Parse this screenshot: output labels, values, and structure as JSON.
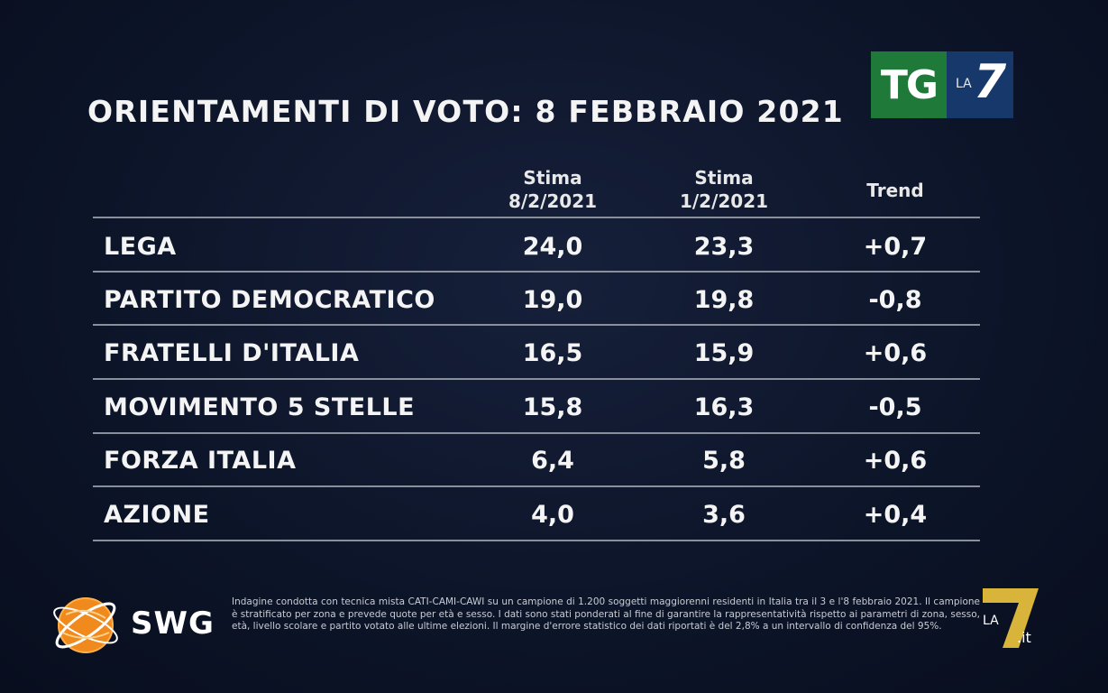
{
  "title": "ORIENTAMENTI DI VOTO: 8 FEBBRAIO 2021",
  "brand": {
    "tg_text": "TG",
    "la_text": "LA",
    "seven_text": "7",
    "swg_text": "SWG",
    "la7it_la": "LA",
    "la7it_it": ".it",
    "colors": {
      "tg_green": "#1f7a3a",
      "tg_blue": "#16386a",
      "swg_orange": "#f08a1c",
      "la7_yellow": "#d9b43a"
    }
  },
  "chart_data": {
    "type": "table",
    "columns": [
      {
        "line1": "Stima",
        "line2": "8/2/2021"
      },
      {
        "line1": "Stima",
        "line2": "1/2/2021"
      },
      {
        "line1": "Trend",
        "line2": ""
      }
    ],
    "rows": [
      {
        "party": "LEGA",
        "values": [
          "24,0",
          "23,3",
          "+0,7"
        ]
      },
      {
        "party": "PARTITO DEMOCRATICO",
        "values": [
          "19,0",
          "19,8",
          "-0,8"
        ]
      },
      {
        "party": "FRATELLI D'ITALIA",
        "values": [
          "16,5",
          "15,9",
          "+0,6"
        ]
      },
      {
        "party": "MOVIMENTO 5 STELLE",
        "values": [
          "15,8",
          "16,3",
          "-0,5"
        ]
      },
      {
        "party": "FORZA ITALIA",
        "values": [
          "6,4",
          "5,8",
          "+0,6"
        ]
      },
      {
        "party": "AZIONE",
        "values": [
          "4,0",
          "3,6",
          "+0,4"
        ]
      }
    ]
  },
  "footnote": "Indagine condotta con tecnica mista CATI-CAMI-CAWI su un campione di 1.200 soggetti maggiorenni residenti in Italia tra il 3 e l'8 febbraio 2021. Il campione è stratificato per zona e prevede quote per età e sesso. I dati sono stati ponderati al fine di garantire la rappresentatività rispetto ai parametri di zona, sesso, età, livello scolare e partito votato alle ultime elezioni. Il margine d'errore statistico dei dati riportati è del 2,8% a un intervallo di confidenza del 95%."
}
